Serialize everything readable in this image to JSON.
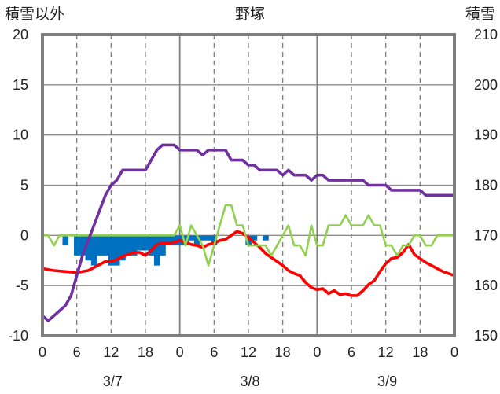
{
  "chart_data": {
    "type": "line",
    "title": "野塚",
    "left_axis_label": "積雪以外",
    "right_axis_label": "積雪",
    "left_ylim": [
      -10,
      20
    ],
    "left_yticks": [
      "20",
      "15",
      "10",
      "5",
      "0",
      "-5",
      "-10"
    ],
    "right_ylim": [
      150,
      210
    ],
    "right_yticks": [
      "210",
      "200",
      "190",
      "180",
      "170",
      "160",
      "150"
    ],
    "x_hours": [
      0,
      72
    ],
    "x_tick_labels": [
      "0",
      "6",
      "12",
      "18",
      "0",
      "6",
      "12",
      "18",
      "0",
      "6",
      "12",
      "18",
      "0"
    ],
    "date_labels": [
      "3/7",
      "3/8",
      "3/9"
    ],
    "grid": true,
    "series": [
      {
        "axis": "left",
        "color": "#0070c0",
        "kind": "bar",
        "hours": [
          4,
          6,
          7,
          8,
          9,
          10,
          11,
          12,
          13,
          14,
          15,
          16,
          17,
          18,
          19,
          20,
          21,
          22,
          23,
          24,
          25,
          26,
          27,
          28,
          29,
          30,
          36,
          37,
          39
        ],
        "values": [
          -1,
          -2,
          -2,
          -2.5,
          -3,
          -2,
          -2,
          -3,
          -3,
          -2.5,
          -2,
          -2,
          -1.5,
          -1.5,
          -2,
          -3,
          -2,
          -1,
          -1,
          -1,
          -1,
          -0.5,
          -1,
          -0.5,
          -0.5,
          -1,
          -1,
          -0.5,
          -0.5
        ]
      },
      {
        "axis": "left",
        "color": "#ff0000",
        "kind": "line",
        "hours": [
          0,
          2,
          4,
          6,
          8,
          9,
          10,
          11,
          12,
          13,
          14,
          15,
          16,
          17,
          18,
          19,
          20,
          21,
          22,
          23,
          24,
          25,
          26,
          27,
          28,
          29,
          30,
          31,
          32,
          33,
          34,
          35,
          36,
          37,
          38,
          39,
          40,
          41,
          42,
          43,
          44,
          45,
          46,
          47,
          48,
          49,
          50,
          51,
          52,
          53,
          54,
          55,
          56,
          57,
          58,
          59,
          60,
          61,
          62,
          63,
          64,
          65,
          66,
          67,
          68,
          69,
          70,
          71,
          72
        ],
        "values": [
          -3.3,
          -3.5,
          -3.6,
          -3.7,
          -3.5,
          -3.2,
          -2.9,
          -2.6,
          -2.6,
          -2.4,
          -2.1,
          -1.9,
          -1.7,
          -1.7,
          -2,
          -1.5,
          -0.9,
          -0.8,
          -0.8,
          -0.7,
          -0.5,
          -0.7,
          -0.9,
          -1,
          -1.2,
          -0.9,
          -0.8,
          -0.5,
          -0.4,
          0,
          0.4,
          0.2,
          -0.2,
          -0.7,
          -1.2,
          -1.8,
          -2.2,
          -2.6,
          -3,
          -3.5,
          -3.8,
          -4,
          -4.7,
          -5.2,
          -5.4,
          -5.3,
          -5.8,
          -5.5,
          -5.9,
          -5.8,
          -6,
          -6,
          -5.5,
          -4.9,
          -4.5,
          -3.6,
          -2.8,
          -2.3,
          -2.2,
          -1.7,
          -0.9,
          -1.9,
          -2.3,
          -2.7,
          -3,
          -3.3,
          -3.6,
          -3.8,
          -4
        ]
      },
      {
        "axis": "left",
        "color": "#92d050",
        "kind": "line",
        "hours": [
          0,
          1,
          2,
          3,
          4,
          5,
          6,
          7,
          8,
          9,
          10,
          11,
          12,
          13,
          14,
          15,
          16,
          17,
          18,
          19,
          20,
          21,
          22,
          23,
          24,
          25,
          26,
          27,
          28,
          29,
          30,
          31,
          32,
          33,
          34,
          35,
          36,
          37,
          38,
          39,
          40,
          41,
          42,
          43,
          44,
          45,
          46,
          47,
          48,
          49,
          50,
          51,
          52,
          53,
          54,
          55,
          56,
          57,
          58,
          59,
          60,
          61,
          62,
          63,
          64,
          65,
          66,
          67,
          68,
          69,
          70,
          71,
          72
        ],
        "values": [
          0,
          0,
          -1,
          0,
          0,
          0,
          0,
          0,
          0,
          0,
          0,
          0,
          0,
          0,
          0,
          0,
          0,
          0,
          0,
          0,
          0,
          0,
          0,
          0,
          1,
          -1,
          1,
          0,
          -1,
          -3,
          -1,
          1,
          3,
          3,
          1,
          1,
          -1,
          -1,
          -1,
          -1,
          -2,
          -1,
          0,
          1,
          -1,
          -1,
          -2,
          1,
          -1,
          -1,
          1,
          1,
          1,
          2,
          1,
          1,
          1,
          2,
          1,
          1,
          -1,
          -1,
          -2,
          -1,
          -1,
          0,
          0,
          -1,
          -1,
          0,
          0,
          0,
          0
        ]
      },
      {
        "axis": "right",
        "color": "#7030a0",
        "kind": "line",
        "hours": [
          0,
          1,
          2,
          3,
          4,
          5,
          6,
          7,
          8,
          9,
          10,
          11,
          12,
          13,
          14,
          15,
          16,
          17,
          18,
          19,
          20,
          21,
          22,
          23,
          24,
          25,
          26,
          27,
          28,
          29,
          30,
          31,
          32,
          33,
          34,
          35,
          36,
          37,
          38,
          39,
          40,
          41,
          42,
          43,
          44,
          45,
          46,
          47,
          48,
          49,
          50,
          51,
          52,
          53,
          54,
          55,
          56,
          57,
          58,
          59,
          60,
          61,
          62,
          63,
          64,
          65,
          66,
          67,
          68,
          69,
          70,
          71,
          72
        ],
        "values": [
          154,
          153,
          154,
          155,
          156,
          158,
          162,
          166,
          169,
          172,
          175,
          178,
          180,
          181,
          183,
          183,
          183,
          183,
          183,
          185,
          187,
          188,
          188,
          188,
          187,
          187,
          187,
          187,
          186,
          187,
          187,
          187,
          187,
          185,
          185,
          185,
          184,
          184,
          183,
          183,
          183,
          183,
          182,
          183,
          182,
          182,
          182,
          181,
          182,
          182,
          181,
          181,
          181,
          181,
          181,
          181,
          181,
          180,
          180,
          180,
          180,
          179,
          179,
          179,
          179,
          179,
          179,
          178,
          178,
          178,
          178,
          178,
          178
        ]
      }
    ]
  }
}
